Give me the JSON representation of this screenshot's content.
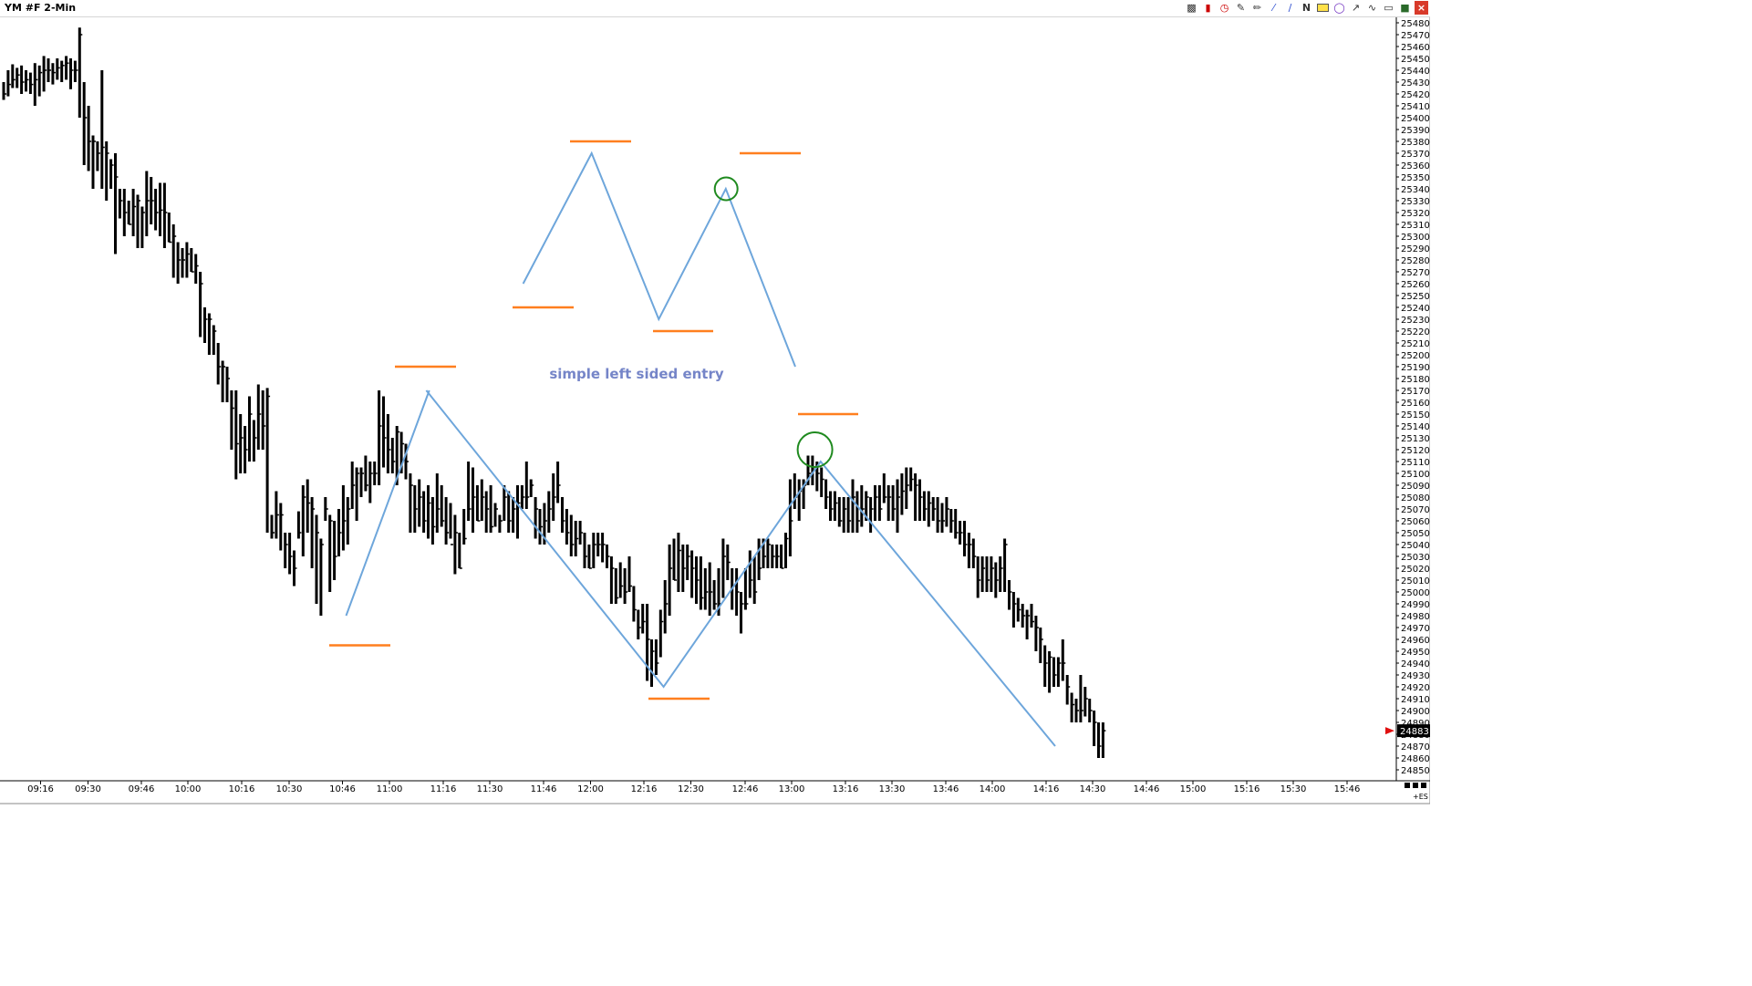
{
  "window": {
    "title": "YM #F 2-Min"
  },
  "toolbar": {
    "icons": [
      "bars-icon",
      "candle-icon",
      "clock-icon",
      "draw-icon",
      "pencil-icon",
      "channel-icon",
      "fib-icon",
      "n-pattern-icon",
      "rectangle-icon",
      "circle-icon",
      "arrow-icon",
      "zigzag-icon",
      "lock-icon",
      "trash-icon",
      "close-icon"
    ],
    "n_label": "N"
  },
  "colors": {
    "bars": "#000000",
    "wave_lines": "#6ea6db",
    "level_lines": "#ff7f1f",
    "circles": "#1f8a1f",
    "annotation_text": "#7585c8",
    "price_marker": "#e01010"
  },
  "axis": {
    "x_ticks": [
      "09:16",
      "09:30",
      "09:46",
      "10:00",
      "10:16",
      "10:30",
      "10:46",
      "11:00",
      "11:16",
      "11:30",
      "11:46",
      "12:00",
      "12:16",
      "12:30",
      "12:46",
      "13:00",
      "13:16",
      "13:30",
      "13:46",
      "14:00",
      "14:16",
      "14:30",
      "14:46",
      "15:00",
      "15:16",
      "15:30",
      "15:46"
    ],
    "corner_label": "+ES"
  },
  "chart_data": {
    "type": "ohlc",
    "title": "YM #F 2-Min",
    "ylim": [
      24850,
      25485
    ],
    "y_tick_step": 10,
    "last_price": "24883",
    "annotation": "simple left sided entry",
    "bars": [
      [
        25420,
        25430,
        25415
      ],
      [
        25428,
        25440,
        25418
      ],
      [
        25432,
        25445,
        25425
      ],
      [
        25436,
        25442,
        25425
      ],
      [
        25430,
        25444,
        25420
      ],
      [
        25432,
        25440,
        25422
      ],
      [
        25428,
        25438,
        25420
      ],
      [
        25432,
        25446,
        25410
      ],
      [
        25438,
        25444,
        25418
      ],
      [
        25440,
        25452,
        25422
      ],
      [
        25440,
        25450,
        25430
      ],
      [
        25438,
        25446,
        25428
      ],
      [
        25442,
        25450,
        25432
      ],
      [
        25444,
        25448,
        25430
      ],
      [
        25446,
        25452,
        25432
      ],
      [
        25440,
        25450,
        25424
      ],
      [
        25440,
        25448,
        25430
      ],
      [
        25470,
        25476,
        25400
      ],
      [
        25400,
        25430,
        25360
      ],
      [
        25380,
        25410,
        25355
      ],
      [
        25380,
        25385,
        25340
      ],
      [
        25370,
        25380,
        25355
      ],
      [
        25375,
        25440,
        25340
      ],
      [
        25370,
        25380,
        25330
      ],
      [
        25360,
        25365,
        25340
      ],
      [
        25350,
        25370,
        25285
      ],
      [
        25330,
        25340,
        25315
      ],
      [
        25320,
        25340,
        25300
      ],
      [
        25310,
        25330,
        25310
      ],
      [
        25325,
        25340,
        25300
      ],
      [
        25330,
        25335,
        25290
      ],
      [
        25320,
        25325,
        25290
      ],
      [
        25330,
        25355,
        25300
      ],
      [
        25330,
        25350,
        25310
      ],
      [
        25320,
        25340,
        25305
      ],
      [
        25322,
        25345,
        25300
      ],
      [
        25320,
        25345,
        25290
      ],
      [
        25295,
        25320,
        25295
      ],
      [
        25300,
        25310,
        25265
      ],
      [
        25280,
        25295,
        25260
      ],
      [
        25280,
        25290,
        25265
      ],
      [
        25285,
        25295,
        25265
      ],
      [
        25270,
        25290,
        25270
      ],
      [
        25275,
        25285,
        25260
      ],
      [
        25260,
        25270,
        25215
      ],
      [
        25230,
        25240,
        25210
      ],
      [
        25230,
        25235,
        25200
      ],
      [
        25220,
        25225,
        25200
      ],
      [
        25190,
        25210,
        25175
      ],
      [
        25190,
        25195,
        25160
      ],
      [
        25180,
        25190,
        25160
      ],
      [
        25155,
        25170,
        25120
      ],
      [
        25125,
        25170,
        25095
      ],
      [
        25130,
        25150,
        25100
      ],
      [
        25120,
        25140,
        25100
      ],
      [
        25150,
        25165,
        25110
      ],
      [
        25130,
        25145,
        25110
      ],
      [
        25150,
        25175,
        25120
      ],
      [
        25140,
        25170,
        25120
      ],
      [
        25165,
        25172,
        25050
      ],
      [
        25050,
        25065,
        25045
      ],
      [
        25065,
        25085,
        25045
      ],
      [
        25065,
        25075,
        25035
      ],
      [
        25040,
        25050,
        25020
      ],
      [
        25030,
        25050,
        25015
      ],
      [
        25020,
        25035,
        25005
      ],
      [
        25050,
        25068,
        25045
      ],
      [
        25080,
        25090,
        25030
      ],
      [
        25075,
        25095,
        25050
      ],
      [
        25070,
        25080,
        25020
      ],
      [
        25050,
        25065,
        24990
      ],
      [
        25040,
        25045,
        24980
      ],
      [
        25070,
        25080,
        25060
      ],
      [
        25060,
        25065,
        25000
      ],
      [
        25030,
        25060,
        25010
      ],
      [
        25050,
        25070,
        25030
      ],
      [
        25060,
        25090,
        25035
      ],
      [
        25070,
        25080,
        25040
      ],
      [
        25090,
        25110,
        25070
      ],
      [
        25100,
        25105,
        25060
      ],
      [
        25100,
        25105,
        25080
      ],
      [
        25090,
        25115,
        25085
      ],
      [
        25100,
        25110,
        25075
      ],
      [
        25100,
        25110,
        25090
      ],
      [
        25140,
        25170,
        25090
      ],
      [
        25130,
        25165,
        25105
      ],
      [
        25120,
        25150,
        25100
      ],
      [
        25110,
        25130,
        25100
      ],
      [
        25135,
        25140,
        25090
      ],
      [
        25125,
        25135,
        25100
      ],
      [
        25110,
        25125,
        25095
      ],
      [
        25090,
        25100,
        25050
      ],
      [
        25070,
        25090,
        25050
      ],
      [
        25080,
        25095,
        25055
      ],
      [
        25060,
        25085,
        25050
      ],
      [
        25075,
        25090,
        25045
      ],
      [
        25055,
        25080,
        25040
      ],
      [
        25070,
        25100,
        25050
      ],
      [
        25060,
        25090,
        25055
      ],
      [
        25050,
        25080,
        25040
      ],
      [
        25040,
        25075,
        25045
      ],
      [
        25050,
        25065,
        25015
      ],
      [
        25020,
        25050,
        25020
      ],
      [
        25045,
        25070,
        25040
      ],
      [
        25070,
        25110,
        25060
      ],
      [
        25080,
        25105,
        25050
      ],
      [
        25060,
        25090,
        25060
      ],
      [
        25080,
        25095,
        25060
      ],
      [
        25070,
        25085,
        25050
      ],
      [
        25055,
        25090,
        25050
      ],
      [
        25070,
        25075,
        25055
      ],
      [
        25060,
        25065,
        25050
      ],
      [
        25080,
        25090,
        25060
      ],
      [
        25060,
        25085,
        25050
      ],
      [
        25070,
        25080,
        25050
      ],
      [
        25075,
        25090,
        25045
      ],
      [
        25080,
        25090,
        25070
      ],
      [
        25080,
        25110,
        25070
      ],
      [
        25090,
        25095,
        25080
      ],
      [
        25070,
        25080,
        25045
      ],
      [
        25055,
        25070,
        25040
      ],
      [
        25060,
        25075,
        25040
      ],
      [
        25070,
        25085,
        25050
      ],
      [
        25080,
        25100,
        25060
      ],
      [
        25090,
        25110,
        25075
      ],
      [
        25060,
        25080,
        25050
      ],
      [
        25050,
        25070,
        25040
      ],
      [
        25040,
        25065,
        25030
      ],
      [
        25045,
        25060,
        25030
      ],
      [
        25050,
        25060,
        25040
      ],
      [
        25030,
        25050,
        25020
      ],
      [
        25020,
        25040,
        25020
      ],
      [
        25040,
        25050,
        25020
      ],
      [
        25040,
        25050,
        25030
      ],
      [
        25040,
        25050,
        25025
      ],
      [
        25030,
        25040,
        25020
      ],
      [
        25020,
        25030,
        24990
      ],
      [
        24995,
        25020,
        24990
      ],
      [
        25005,
        25025,
        24995
      ],
      [
        25000,
        25020,
        24990
      ],
      [
        25005,
        25030,
        25000
      ],
      [
        24985,
        25005,
        24975
      ],
      [
        24970,
        24985,
        24960
      ],
      [
        24975,
        24990,
        24965
      ],
      [
        24960,
        24990,
        24925
      ],
      [
        24950,
        24960,
        24920
      ],
      [
        24940,
        24960,
        24930
      ],
      [
        24975,
        24985,
        24945
      ],
      [
        24990,
        25010,
        24965
      ],
      [
        25020,
        25040,
        24980
      ],
      [
        25010,
        25045,
        25010
      ],
      [
        25035,
        25050,
        25000
      ],
      [
        25020,
        25040,
        25000
      ],
      [
        25030,
        25040,
        25010
      ],
      [
        25020,
        25035,
        24995
      ],
      [
        25010,
        25030,
        24990
      ],
      [
        24995,
        25030,
        24985
      ],
      [
        25000,
        25020,
        24985
      ],
      [
        25000,
        25025,
        24980
      ],
      [
        24990,
        25010,
        24985
      ],
      [
        24990,
        25020,
        24980
      ],
      [
        25030,
        25045,
        24995
      ],
      [
        25025,
        25040,
        25010
      ],
      [
        25005,
        25020,
        24985
      ],
      [
        25000,
        25020,
        24980
      ],
      [
        24990,
        25000,
        24965
      ],
      [
        24990,
        25020,
        24985
      ],
      [
        25010,
        25035,
        24995
      ],
      [
        25000,
        25030,
        24990
      ],
      [
        25020,
        25045,
        25010
      ],
      [
        25030,
        25045,
        25020
      ],
      [
        25040,
        25045,
        25020
      ],
      [
        25030,
        25040,
        25020
      ],
      [
        25030,
        25040,
        25020
      ],
      [
        25020,
        25040,
        25020
      ],
      [
        25045,
        25050,
        25020
      ],
      [
        25060,
        25095,
        25030
      ],
      [
        25080,
        25100,
        25070
      ],
      [
        25085,
        25095,
        25060
      ],
      [
        25090,
        25095,
        25070
      ],
      [
        25100,
        25115,
        25090
      ],
      [
        25105,
        25115,
        25090
      ],
      [
        25100,
        25110,
        25085
      ],
      [
        25095,
        25105,
        25080
      ],
      [
        25080,
        25095,
        25070
      ],
      [
        25070,
        25085,
        25060
      ],
      [
        25075,
        25085,
        25060
      ],
      [
        25060,
        25080,
        25055
      ],
      [
        25070,
        25080,
        25050
      ],
      [
        25060,
        25080,
        25050
      ],
      [
        25080,
        25095,
        25050
      ],
      [
        25060,
        25085,
        25050
      ],
      [
        25070,
        25090,
        25055
      ],
      [
        25080,
        25085,
        25060
      ],
      [
        25070,
        25080,
        25050
      ],
      [
        25080,
        25090,
        25060
      ],
      [
        25070,
        25090,
        25060
      ],
      [
        25080,
        25100,
        25075
      ],
      [
        25080,
        25090,
        25060
      ],
      [
        25070,
        25090,
        25060
      ],
      [
        25080,
        25095,
        25050
      ],
      [
        25085,
        25100,
        25065
      ],
      [
        25090,
        25105,
        25070
      ],
      [
        25095,
        25105,
        25085
      ],
      [
        25090,
        25100,
        25060
      ],
      [
        25080,
        25095,
        25060
      ],
      [
        25070,
        25085,
        25060
      ],
      [
        25075,
        25085,
        25055
      ],
      [
        25070,
        25080,
        25060
      ],
      [
        25060,
        25080,
        25050
      ],
      [
        25060,
        25075,
        25050
      ],
      [
        25070,
        25080,
        25055
      ],
      [
        25060,
        25070,
        25050
      ],
      [
        25050,
        25070,
        25045
      ],
      [
        25050,
        25060,
        25040
      ],
      [
        25040,
        25060,
        25030
      ],
      [
        25040,
        25050,
        25020
      ],
      [
        25030,
        25045,
        25020
      ],
      [
        25010,
        25030,
        24995
      ],
      [
        25020,
        25030,
        25000
      ],
      [
        25010,
        25030,
        25000
      ],
      [
        25020,
        25030,
        25000
      ],
      [
        25010,
        25025,
        24995
      ],
      [
        25020,
        25030,
        25000
      ],
      [
        25040,
        25045,
        25000
      ],
      [
        25000,
        25010,
        24985
      ],
      [
        24990,
        25000,
        24970
      ],
      [
        24985,
        24995,
        24975
      ],
      [
        24980,
        24990,
        24970
      ],
      [
        24980,
        24985,
        24960
      ],
      [
        24975,
        24990,
        24970
      ],
      [
        24970,
        24980,
        24950
      ],
      [
        24960,
        24970,
        24940
      ],
      [
        24940,
        24955,
        24920
      ],
      [
        24945,
        24950,
        24915
      ],
      [
        24930,
        24945,
        24920
      ],
      [
        24940,
        24945,
        24920
      ],
      [
        24940,
        24960,
        24925
      ],
      [
        24920,
        24930,
        24905
      ],
      [
        24905,
        24915,
        24890
      ],
      [
        24900,
        24910,
        24890
      ],
      [
        24900,
        24930,
        24890
      ],
      [
        24910,
        24920,
        24895
      ],
      [
        24900,
        24910,
        24890
      ],
      [
        24890,
        24900,
        24870
      ],
      [
        24870,
        24890,
        24860
      ],
      [
        24883,
        24890,
        24860
      ]
    ],
    "waves": [
      [
        [
          24980,
          379.5
        ],
        [
          25170,
          470.7
        ]
      ],
      [
        [
          25170,
          467.4
        ],
        [
          24920,
          727.6
        ],
        [
          25110,
          899.8
        ],
        [
          24870,
          1157.0
        ]
      ],
      [
        [
          25260,
          573.6
        ],
        [
          25370,
          648.7
        ],
        [
          25230,
          722.3
        ],
        [
          25340,
          795.8
        ],
        [
          25190,
          872.0
        ]
      ]
    ],
    "levels": [
      [
        24955,
        361,
        428
      ],
      [
        25190,
        433,
        500
      ],
      [
        25240,
        562,
        629
      ],
      [
        25380,
        625,
        692
      ],
      [
        25220,
        716,
        782
      ],
      [
        25370,
        811,
        878
      ],
      [
        24910,
        711,
        778
      ],
      [
        25150,
        875,
        941
      ]
    ],
    "circles": [
      [
        25120,
        893.6,
        19
      ],
      [
        25340,
        796.2,
        12.5
      ]
    ]
  }
}
